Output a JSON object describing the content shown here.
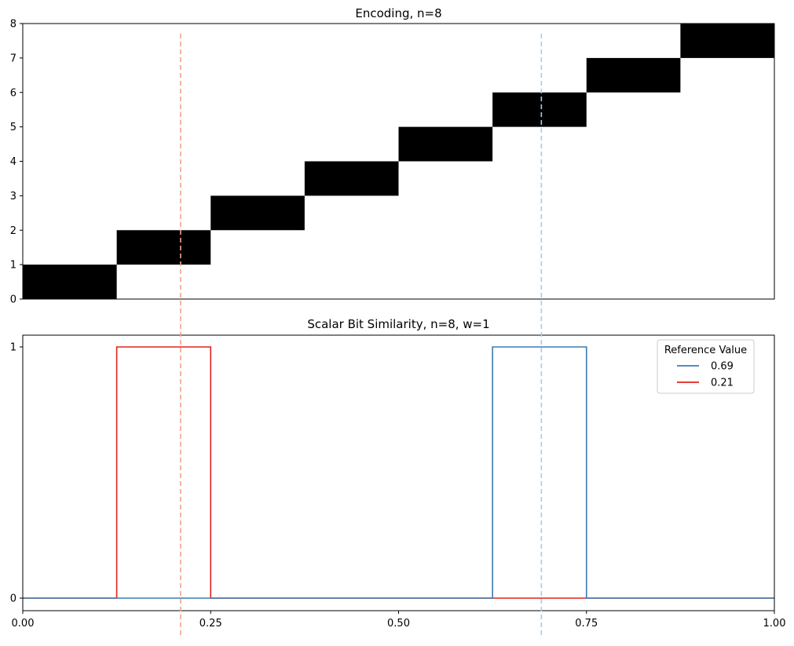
{
  "chart_data": [
    {
      "type": "heatmap",
      "title": "Encoding, n=8",
      "xlim": [
        0,
        1
      ],
      "ylim": [
        0,
        8
      ],
      "yticks": [
        "0",
        "1",
        "2",
        "3",
        "4",
        "5",
        "6",
        "7",
        "8"
      ],
      "grid": false,
      "cells": [
        {
          "bit": 0,
          "x0": 0.0,
          "x1": 0.125
        },
        {
          "bit": 1,
          "x0": 0.125,
          "x1": 0.25
        },
        {
          "bit": 2,
          "x0": 0.25,
          "x1": 0.375
        },
        {
          "bit": 3,
          "x0": 0.375,
          "x1": 0.5
        },
        {
          "bit": 4,
          "x0": 0.5,
          "x1": 0.625
        },
        {
          "bit": 5,
          "x0": 0.625,
          "x1": 0.75
        },
        {
          "bit": 6,
          "x0": 0.75,
          "x1": 0.875
        },
        {
          "bit": 7,
          "x0": 0.875,
          "x1": 1.0
        }
      ],
      "colors": {
        "on": "#000000",
        "off": "#ffffff"
      }
    },
    {
      "type": "line",
      "title": "Scalar Bit Similarity, n=8, w=1",
      "xlim": [
        0,
        1
      ],
      "ylim": [
        0,
        1
      ],
      "xticks": [
        "0.00",
        "0.25",
        "0.50",
        "0.75",
        "1.00"
      ],
      "xtick_values": [
        0,
        0.25,
        0.5,
        0.75,
        1.0
      ],
      "yticks": [
        "0",
        "1"
      ],
      "ytick_values": [
        0,
        1
      ],
      "grid": false,
      "legend": {
        "title": "Reference Value",
        "placement": "top-right"
      },
      "series": [
        {
          "name": "0.69",
          "color": "#3b7bb4",
          "x": [
            0,
            0.625,
            0.625,
            0.75,
            0.75,
            1.0
          ],
          "y": [
            0,
            0,
            1,
            1,
            0,
            0
          ]
        },
        {
          "name": "0.21",
          "color": "#e0231c",
          "x": [
            0,
            0.125,
            0.125,
            0.25,
            0.25,
            1.0
          ],
          "y": [
            0,
            0,
            1,
            1,
            0,
            0
          ]
        }
      ]
    }
  ],
  "reference_lines": [
    {
      "value": 0.21,
      "color": "#f4a08f"
    },
    {
      "value": 0.69,
      "color": "#a9c8ef"
    }
  ]
}
